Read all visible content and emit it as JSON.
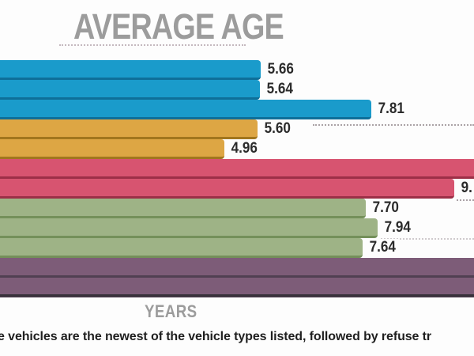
{
  "chart_data": {
    "type": "bar",
    "orientation": "horizontal",
    "title": "AVERAGE AGE",
    "xlabel": "YEARS",
    "note": "e vehicles are the newest of the vehicle types listed, followed by refuse tr",
    "category_labels_visible": false,
    "x_axis": {
      "ticks_visible": false,
      "visible_value_range_approx": [
        0.6,
        9.8
      ],
      "unit": "years"
    },
    "legend": "none",
    "palette": {
      "blue": {
        "fill": "#1a9bcb",
        "edge": "#0e6f99"
      },
      "orange": {
        "fill": "#dda644",
        "edge": "#a1761e"
      },
      "pink": {
        "fill": "#d75470",
        "edge": "#9c2f47"
      },
      "green": {
        "fill": "#9eb386",
        "edge": "#74905a"
      },
      "purple": {
        "fill": "#7d5c78",
        "edge": "#514052"
      }
    },
    "bars": [
      {
        "color_group": "blue",
        "value": 5.66,
        "label": "5.66",
        "clipped": false
      },
      {
        "color_group": "blue",
        "value": 5.64,
        "label": "5.64",
        "clipped": false
      },
      {
        "color_group": "blue",
        "value": 7.81,
        "label": "7.81",
        "clipped": false
      },
      {
        "color_group": "orange",
        "value": 5.6,
        "label": "5.60",
        "clipped": false
      },
      {
        "color_group": "orange",
        "value": 4.96,
        "label": "4.96",
        "clipped": false
      },
      {
        "color_group": "pink",
        "value": null,
        "label": "",
        "clipped": true
      },
      {
        "color_group": "pink",
        "value": 9.43,
        "label": "9.",
        "clipped": false,
        "value_estimated_from_bar_length": true,
        "label_cut_at_edge": true
      },
      {
        "color_group": "green",
        "value": 7.7,
        "label": "7.70",
        "clipped": false
      },
      {
        "color_group": "green",
        "value": 7.94,
        "label": "7.94",
        "clipped": false
      },
      {
        "color_group": "green",
        "value": 7.64,
        "label": "7.64",
        "clipped": false
      },
      {
        "color_group": "purple",
        "value": null,
        "label": "",
        "clipped": true
      },
      {
        "color_group": "purple",
        "value": null,
        "label": "",
        "clipped": true
      }
    ]
  },
  "colors": {
    "background": "#fdfdfd",
    "title_gray": "#9c9c9c",
    "value_label": "#2b2b2b",
    "axis_line": "#38313a",
    "footnote_text": "#1f1f1f",
    "dotted_line": "#aaa2a6"
  }
}
